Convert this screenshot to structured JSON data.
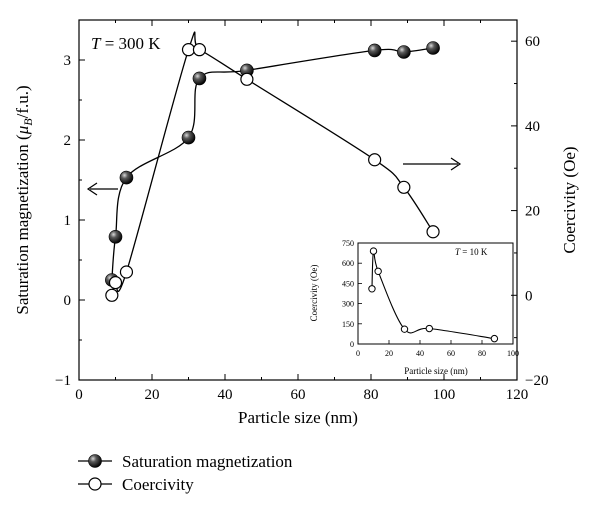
{
  "chart_data": {
    "type": "scatter",
    "annotation": "T = 300 K",
    "annotation_parts": {
      "var": "T",
      "rest": " = 300 K"
    },
    "xlabel": "Particle size (nm)",
    "ylabel_left_parts": {
      "pre": "Saturation magnetization (",
      "mu": "μ",
      "sub": "B",
      "post": "/f.u.)"
    },
    "ylabel_right": "Coercivity (Oe)",
    "xlim": [
      0,
      120
    ],
    "ylim_left": [
      -1,
      3.5
    ],
    "ylim_right": [
      -20,
      65
    ],
    "xticks": [
      "0",
      "20",
      "40",
      "60",
      "80",
      "100",
      "120"
    ],
    "yticks_left": [
      "−1",
      "0",
      "1",
      "2",
      "3"
    ],
    "yticks_right": [
      "−20",
      "0",
      "20",
      "40",
      "60"
    ],
    "series": [
      {
        "name": "Saturation magnetization",
        "axis": "left",
        "marker": "filled-circle",
        "x": [
          9,
          10,
          13,
          30,
          33,
          46,
          81,
          89,
          97
        ],
        "y": [
          0.25,
          0.79,
          1.53,
          2.03,
          2.77,
          2.87,
          3.12,
          3.1,
          3.15
        ]
      },
      {
        "name": "Coercivity",
        "axis": "right",
        "marker": "open-circle",
        "x": [
          9,
          10,
          13,
          30,
          33,
          46,
          81,
          89,
          97
        ],
        "y": [
          0,
          3,
          5.5,
          58,
          58,
          51,
          32,
          25.5,
          15
        ]
      }
    ],
    "legend_position": "bottom-left",
    "inset": {
      "annotation_parts": {
        "var": "T",
        "rest": " = 10 K"
      },
      "xlabel": "Particle size (nm)",
      "ylabel": "Coercivity (Oe)",
      "xlim": [
        0,
        100
      ],
      "ylim": [
        0,
        750
      ],
      "xticks": [
        "0",
        "20",
        "40",
        "60",
        "80",
        "100"
      ],
      "yticks": [
        "0",
        "150",
        "300",
        "450",
        "600",
        "750"
      ],
      "x": [
        9,
        10,
        13,
        30,
        46,
        88
      ],
      "y": [
        410,
        690,
        540,
        110,
        115,
        40
      ]
    }
  }
}
